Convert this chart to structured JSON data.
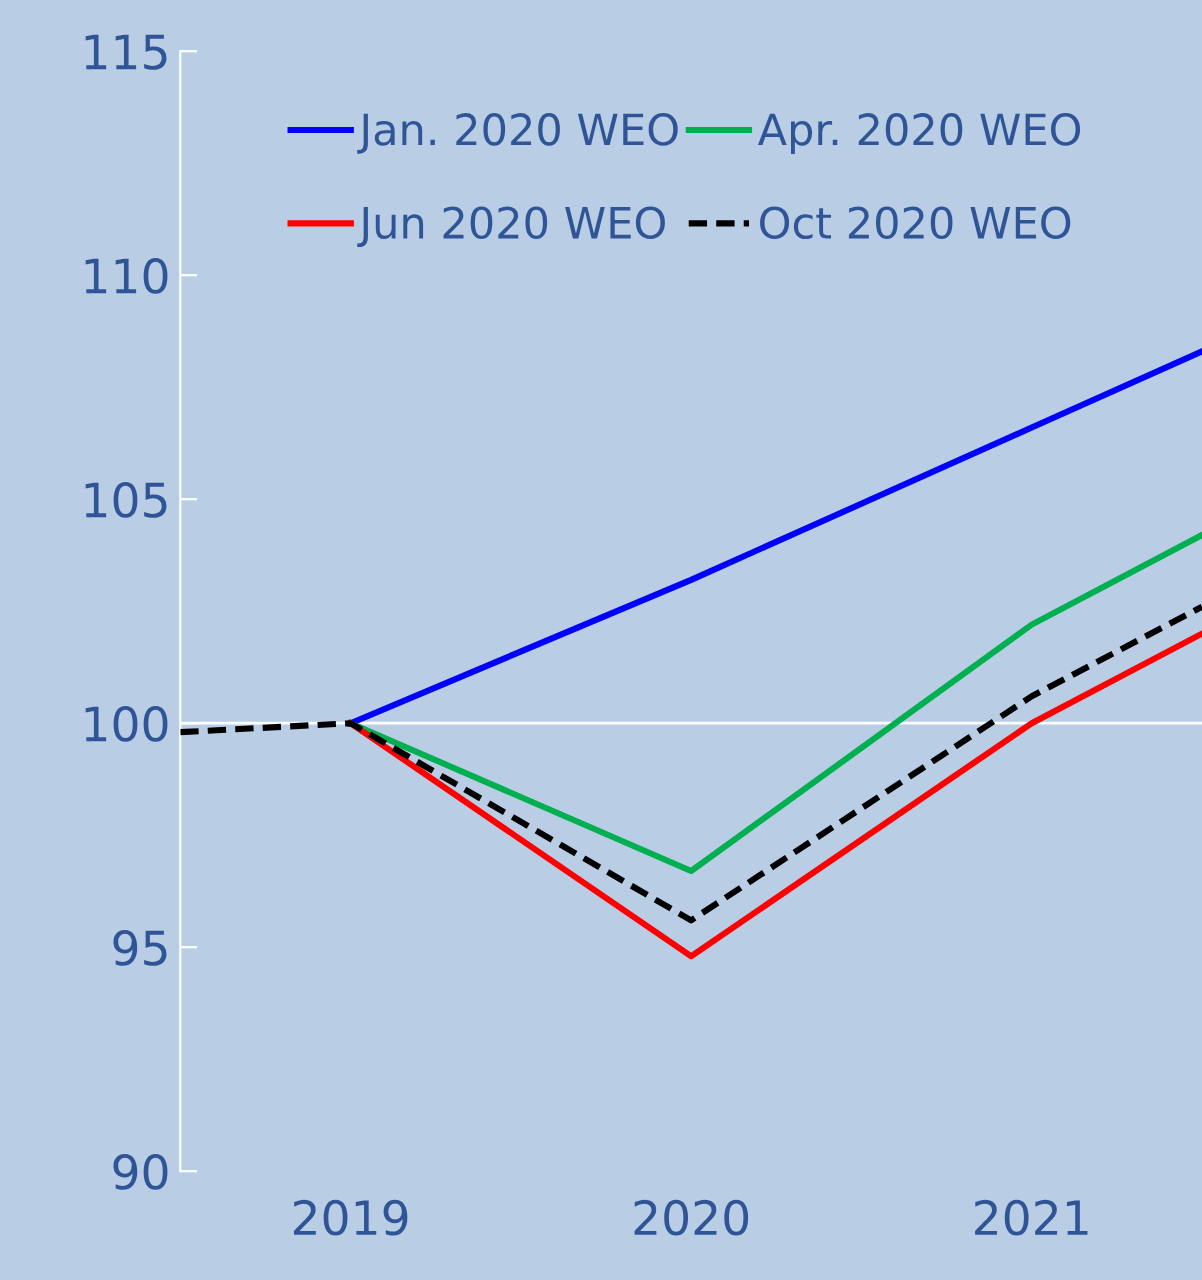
{
  "chart_data": {
    "type": "line",
    "x": [
      2018.5,
      2019,
      2020,
      2021,
      2021.5
    ],
    "series": [
      {
        "name": "Jan. 2020 WEO",
        "color": "#0000ff",
        "values": [
          null,
          100,
          103.2,
          106.6,
          108.3
        ],
        "line_style": "solid"
      },
      {
        "name": "Apr. 2020 WEO",
        "color": "#00b050",
        "values": [
          null,
          100,
          96.7,
          102.2,
          104.2
        ],
        "line_style": "solid"
      },
      {
        "name": "Jun 2020 WEO",
        "color": "#ff0000",
        "values": [
          null,
          100,
          94.8,
          100.0,
          102.0
        ],
        "line_style": "solid"
      },
      {
        "name": "Oct 2020 WEO",
        "color": "#000000",
        "values": [
          99.8,
          100,
          95.6,
          100.6,
          102.6
        ],
        "line_style": "dashed"
      }
    ],
    "xlim": [
      2018.5,
      2021.5
    ],
    "xticks": [
      2019,
      2020,
      2021
    ],
    "ylim": [
      90,
      115
    ],
    "yticks": [
      90,
      95,
      100,
      105,
      110,
      115
    ],
    "ref_lines": [
      {
        "axis": "y",
        "value": 100,
        "color": "#ffffff"
      }
    ],
    "grid": false,
    "legend": "top left",
    "marker": "none"
  }
}
